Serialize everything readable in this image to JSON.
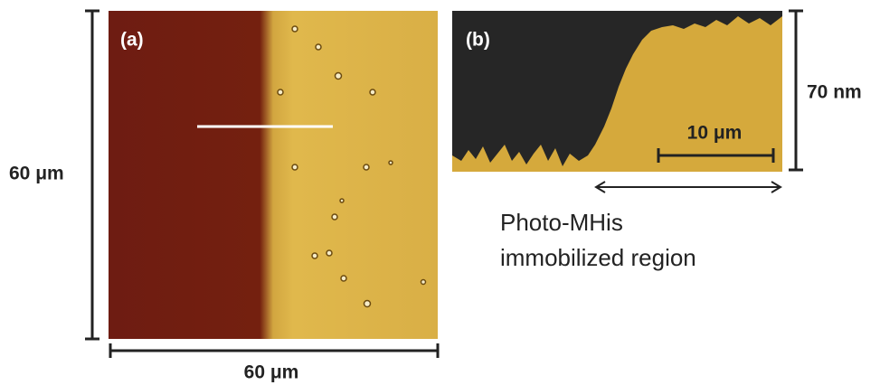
{
  "panel_a": {
    "label": "(a)",
    "height_scale": "60 μm",
    "width_scale": "60 μm"
  },
  "panel_b": {
    "label": "(b)",
    "height_scale": "70 nm",
    "length_scale": "10 μm"
  },
  "annotation": {
    "lines": [
      "Photo-MHis",
      "immobilized region"
    ]
  }
}
